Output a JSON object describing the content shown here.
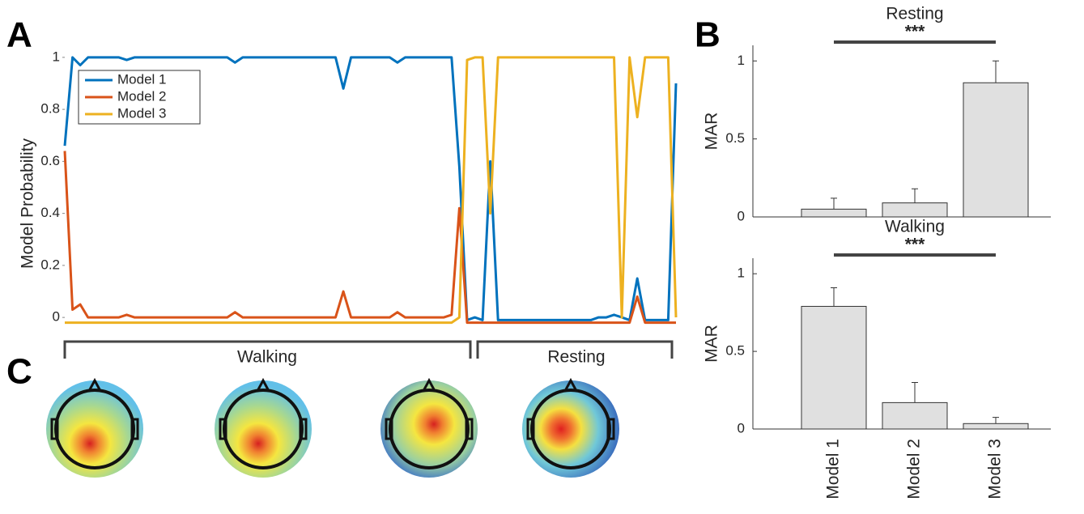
{
  "panel_labels": [
    "A",
    "B",
    "C"
  ],
  "chart_data": [
    {
      "type": "line",
      "y_label": "Model Probability",
      "ylim": [
        -0.04,
        1.04
      ],
      "yticks": [
        0,
        0.2,
        0.4,
        0.6,
        0.8,
        1
      ],
      "legend": "upper left",
      "annotations": [
        "Walking",
        "Resting"
      ],
      "series": [
        {
          "name": "Model 1",
          "color": "#0072BD",
          "values": [
            0.66,
            1,
            0.97,
            1,
            1,
            1,
            1,
            1,
            0.99,
            1,
            1,
            1,
            1,
            1,
            1,
            1,
            1,
            1,
            1,
            1,
            1,
            1,
            0.98,
            1,
            1,
            1,
            1,
            1,
            1,
            1,
            1,
            1,
            1,
            1,
            1,
            1,
            0.88,
            1,
            1,
            1,
            1,
            1,
            1,
            0.98,
            1,
            1,
            1,
            1,
            1,
            1,
            1,
            0.58,
            -0.01,
            0,
            -0.01,
            0.6,
            -0.01,
            -0.01,
            -0.01,
            -0.01,
            -0.01,
            -0.01,
            -0.01,
            -0.01,
            -0.01,
            -0.01,
            -0.01,
            -0.01,
            -0.01,
            0,
            0,
            0.01,
            0,
            -0.01,
            0.15,
            -0.01,
            -0.01,
            -0.01,
            -0.01,
            0.9
          ]
        },
        {
          "name": "Model 2",
          "color": "#D95319",
          "values": [
            0.64,
            0.03,
            0.05,
            0,
            0,
            0,
            0,
            0,
            0.01,
            0,
            0,
            0,
            0,
            0,
            0,
            0,
            0,
            0,
            0,
            0,
            0,
            0,
            0.02,
            0,
            0,
            0,
            0,
            0,
            0,
            0,
            0,
            0,
            0,
            0,
            0,
            0,
            0.1,
            0,
            0,
            0,
            0,
            0,
            0,
            0.02,
            0,
            0,
            0,
            0,
            0,
            0,
            0.01,
            0.42,
            -0.02,
            -0.02,
            -0.02,
            -0.02,
            -0.02,
            -0.02,
            -0.02,
            -0.02,
            -0.02,
            -0.02,
            -0.02,
            -0.02,
            -0.02,
            -0.02,
            -0.02,
            -0.02,
            -0.02,
            -0.02,
            -0.02,
            -0.02,
            -0.02,
            -0.02,
            0.08,
            -0.02,
            -0.02,
            -0.02,
            -0.02,
            -0.02
          ]
        },
        {
          "name": "Model 3",
          "color": "#EDB120",
          "values": [
            -0.02,
            -0.02,
            -0.02,
            -0.02,
            -0.02,
            -0.02,
            -0.02,
            -0.02,
            -0.02,
            -0.02,
            -0.02,
            -0.02,
            -0.02,
            -0.02,
            -0.02,
            -0.02,
            -0.02,
            -0.02,
            -0.02,
            -0.02,
            -0.02,
            -0.02,
            -0.02,
            -0.02,
            -0.02,
            -0.02,
            -0.02,
            -0.02,
            -0.02,
            -0.02,
            -0.02,
            -0.02,
            -0.02,
            -0.02,
            -0.02,
            -0.02,
            -0.02,
            -0.02,
            -0.02,
            -0.02,
            -0.02,
            -0.02,
            -0.02,
            -0.02,
            -0.02,
            -0.02,
            -0.02,
            -0.02,
            -0.02,
            -0.02,
            -0.02,
            0,
            0.99,
            1,
            1,
            0.4,
            1,
            1,
            1,
            1,
            1,
            1,
            1,
            1,
            1,
            1,
            1,
            1,
            1,
            1,
            1,
            1,
            0,
            1,
            0.77,
            1,
            1,
            1,
            1,
            0
          ]
        }
      ]
    },
    {
      "type": "bar",
      "title": "Resting",
      "y_label": "MAR",
      "annotation": "***",
      "values": [
        0.05,
        0.09,
        0.86
      ],
      "errors": [
        0.07,
        0.09,
        0.14
      ],
      "color": "#e0e0e0",
      "ylim": [
        0,
        1.1
      ],
      "yticks": [
        0,
        0.5,
        1
      ]
    },
    {
      "type": "bar",
      "title": "Walking",
      "y_label": "MAR",
      "annotation": "***",
      "categories": [
        "Model 1",
        "Model 2",
        "Model 3"
      ],
      "values": [
        0.79,
        0.17,
        0.035
      ],
      "errors": [
        0.12,
        0.13,
        0.04
      ],
      "color": "#e0e0e0",
      "ylim": [
        0,
        1.1
      ],
      "yticks": [
        0,
        0.5,
        1
      ]
    }
  ]
}
